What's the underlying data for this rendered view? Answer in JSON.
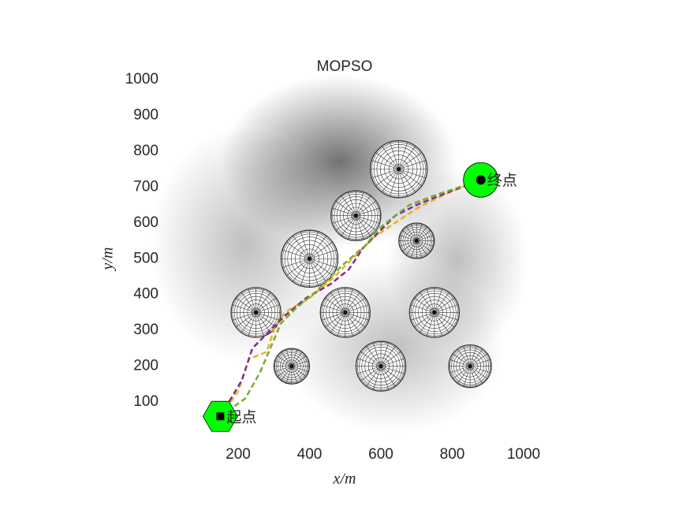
{
  "chart_data": {
    "type": "path",
    "title": "MOPSO",
    "x_label": "x/m",
    "y_label": "y/m",
    "xlim": [
      0,
      1000
    ],
    "ylim": [
      0,
      1000
    ],
    "xticks": [
      200,
      400,
      600,
      800,
      1000
    ],
    "yticks": [
      100,
      200,
      300,
      400,
      500,
      600,
      700,
      800,
      900,
      1000
    ],
    "start": {
      "label": "起点",
      "x": 150,
      "y": 60,
      "color": "#00ff00"
    },
    "end": {
      "label": "终点",
      "x": 880,
      "y": 720,
      "color": "#00ff00"
    },
    "obstacles": [
      {
        "x": 650,
        "y": 750,
        "r": 80
      },
      {
        "x": 530,
        "y": 620,
        "r": 70
      },
      {
        "x": 400,
        "y": 500,
        "r": 80
      },
      {
        "x": 700,
        "y": 550,
        "r": 50
      },
      {
        "x": 250,
        "y": 350,
        "r": 70
      },
      {
        "x": 500,
        "y": 350,
        "r": 70
      },
      {
        "x": 750,
        "y": 350,
        "r": 70
      },
      {
        "x": 350,
        "y": 200,
        "r": 50
      },
      {
        "x": 600,
        "y": 200,
        "r": 70
      },
      {
        "x": 850,
        "y": 200,
        "r": 60
      }
    ],
    "series": [
      {
        "color": "#edb120",
        "x": [
          150,
          200,
          230,
          280,
          300,
          330,
          400,
          470,
          530,
          580,
          640,
          700,
          780,
          880
        ],
        "values": [
          60,
          130,
          220,
          240,
          300,
          350,
          390,
          450,
          510,
          560,
          600,
          640,
          680,
          720
        ]
      },
      {
        "color": "#7e2f8e",
        "x": [
          150,
          210,
          240,
          290,
          330,
          390,
          460,
          510,
          550,
          600,
          640,
          700,
          800,
          880
        ],
        "values": [
          60,
          160,
          250,
          300,
          340,
          390,
          430,
          470,
          530,
          580,
          620,
          650,
          690,
          720
        ]
      },
      {
        "color": "#77ac30",
        "x": [
          150,
          220,
          260,
          290,
          320,
          360,
          420,
          490,
          560,
          590,
          640,
          680,
          760,
          880
        ],
        "values": [
          60,
          110,
          180,
          250,
          320,
          360,
          410,
          480,
          540,
          580,
          620,
          650,
          680,
          720
        ]
      }
    ]
  }
}
